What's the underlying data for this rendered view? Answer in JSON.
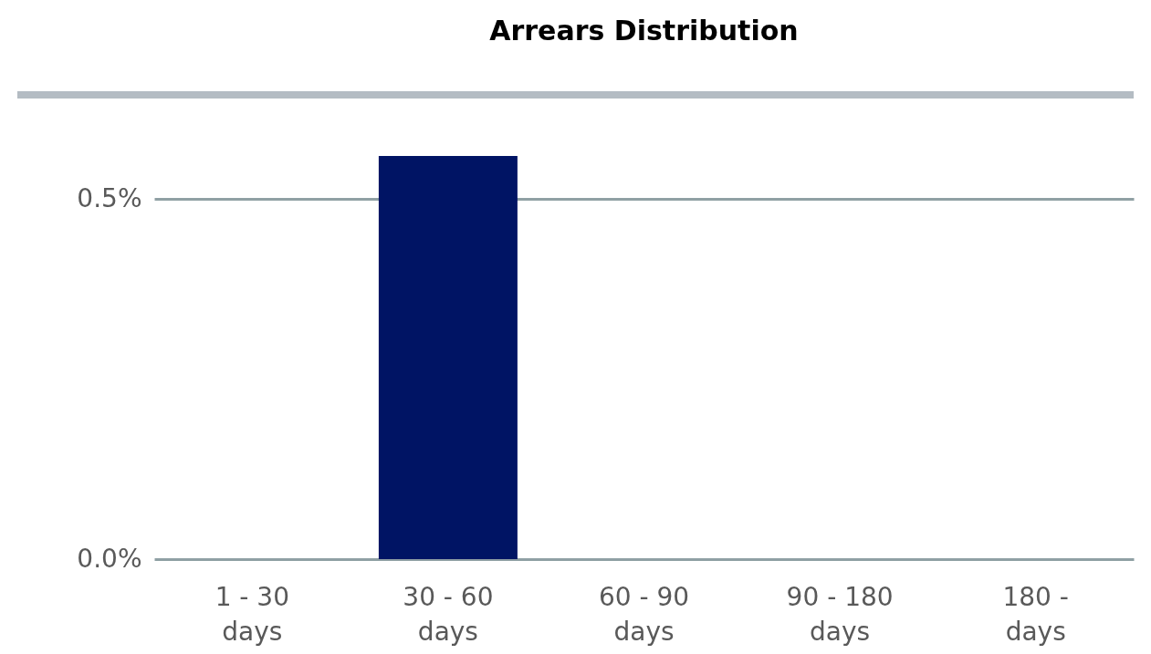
{
  "chart_data": {
    "type": "bar",
    "title": "Arrears Distribution",
    "categories": [
      "1 - 30 days",
      "30 - 60 days",
      "60 - 90 days",
      "90 - 180 days",
      "180 - days"
    ],
    "values": [
      0,
      0.56,
      0,
      0,
      0
    ],
    "color": "#001464",
    "ylim": [
      0,
      0.645
    ],
    "yticks": [
      {
        "value": 0,
        "label": "0.0%"
      },
      {
        "value": 0.5,
        "label": "0.5%"
      }
    ],
    "grid": "y"
  }
}
